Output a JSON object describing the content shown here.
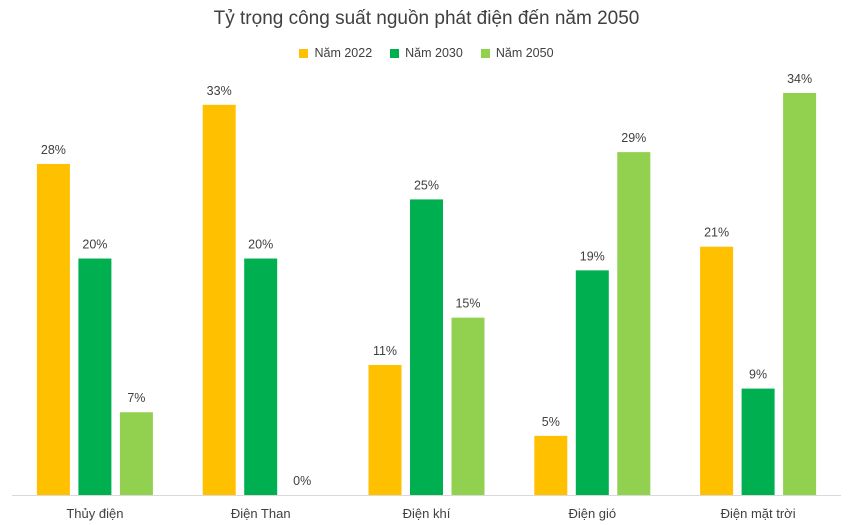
{
  "chart_data": {
    "type": "bar",
    "title": "Tỷ trọng công suất nguồn phát điện đến năm 2050",
    "categories": [
      "Thủy điện",
      "Điện Than",
      "Điện khí",
      "Điện gió",
      "Điện mặt trời"
    ],
    "series": [
      {
        "name": "Năm 2022",
        "color": "#FFC000",
        "values": [
          28,
          33,
          11,
          5,
          21
        ],
        "labels": [
          "28%",
          "33%",
          "11%",
          "5%",
          "21%"
        ]
      },
      {
        "name": "Năm 2030",
        "color": "#00B050",
        "values": [
          20,
          20,
          25,
          19,
          9
        ],
        "labels": [
          "20%",
          "20%",
          "25%",
          "19%",
          "9%"
        ]
      },
      {
        "name": "Năm 2050",
        "color": "#92D050",
        "values": [
          7,
          0,
          15,
          29,
          34
        ],
        "labels": [
          "7%",
          "0%",
          "15%",
          "29%",
          "34%"
        ]
      }
    ],
    "ylim": [
      0,
      34
    ],
    "unit": "%",
    "grid": false,
    "legend_position": "top"
  }
}
